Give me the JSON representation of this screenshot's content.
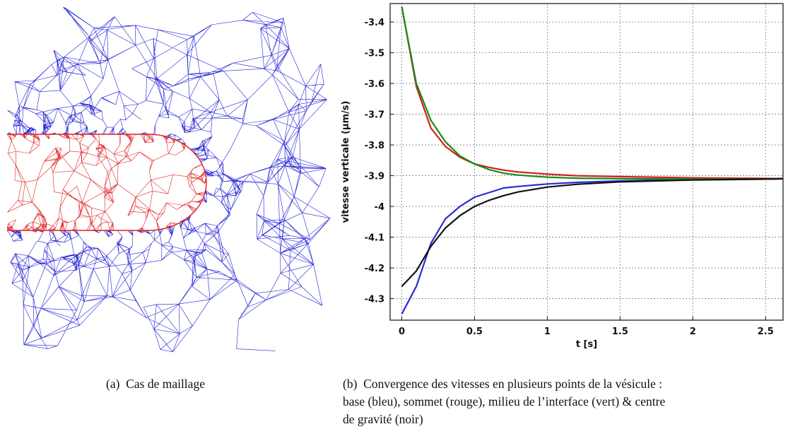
{
  "figure": {
    "subfigure_a": {
      "label": "(a)",
      "caption": "Cas de maillage",
      "mesh_colors": {
        "fluid": "#1f1fd6",
        "vesicle": "#e02020"
      }
    },
    "subfigure_b": {
      "label": "(b)",
      "caption_line1": "Convergence des vitesses en plusieurs points de la vésicule :",
      "caption_line2": "base (bleu), sommet (rouge), milieu de l’interface (vert) & centre",
      "caption_line3": "de gravité (noir)"
    }
  },
  "chart_data": {
    "type": "line",
    "xlabel": "t [s]",
    "ylabel": "vitesse verticale (µm/s)",
    "xlim": [
      -0.08,
      2.62
    ],
    "ylim": [
      -4.37,
      -3.34
    ],
    "x_ticks": [
      0,
      0.5,
      1,
      1.5,
      2,
      2.5
    ],
    "x_tick_labels": [
      "0",
      "0.5",
      "1",
      "1.5",
      "2",
      "2.5"
    ],
    "y_ticks": [
      -3.4,
      -3.5,
      -3.6,
      -3.7,
      -3.8,
      -3.9,
      -4,
      -4.1,
      -4.2,
      -4.3
    ],
    "y_tick_labels": [
      "-3.4",
      "-3.5",
      "-3.6",
      "-3.7",
      "-3.8",
      "-3.9",
      "-4",
      "-4.1",
      "-4.2",
      "-4.3"
    ],
    "grid": true,
    "series": [
      {
        "color": "#2a2ad8",
        "x": [
          0,
          0.1,
          0.2,
          0.3,
          0.4,
          0.5,
          0.6,
          0.7,
          0.8,
          1.0,
          1.2,
          1.5,
          2.0,
          2.5,
          2.62
        ],
        "y": [
          -4.35,
          -4.26,
          -4.12,
          -4.04,
          -4.0,
          -3.97,
          -3.955,
          -3.94,
          -3.935,
          -3.927,
          -3.922,
          -3.917,
          -3.912,
          -3.911,
          -3.91
        ]
      },
      {
        "color": "#d02020",
        "x": [
          0,
          0.1,
          0.2,
          0.3,
          0.4,
          0.5,
          0.6,
          0.7,
          0.8,
          1.0,
          1.2,
          1.5,
          2.0,
          2.5,
          2.62
        ],
        "y": [
          -3.35,
          -3.61,
          -3.745,
          -3.805,
          -3.84,
          -3.862,
          -3.873,
          -3.882,
          -3.888,
          -3.895,
          -3.9,
          -3.903,
          -3.907,
          -3.909,
          -3.91
        ]
      },
      {
        "color": "#1a8a1a",
        "x": [
          0,
          0.1,
          0.2,
          0.3,
          0.4,
          0.5,
          0.6,
          0.7,
          0.8,
          1.0,
          1.2,
          1.5,
          2.0,
          2.5,
          2.62
        ],
        "y": [
          -3.35,
          -3.6,
          -3.72,
          -3.79,
          -3.836,
          -3.862,
          -3.88,
          -3.892,
          -3.898,
          -3.905,
          -3.908,
          -3.91,
          -3.911,
          -3.911,
          -3.91
        ]
      },
      {
        "color": "#111111",
        "x": [
          0,
          0.1,
          0.2,
          0.3,
          0.4,
          0.5,
          0.6,
          0.7,
          0.8,
          1.0,
          1.2,
          1.5,
          2.0,
          2.5,
          2.62
        ],
        "y": [
          -4.26,
          -4.21,
          -4.13,
          -4.07,
          -4.03,
          -4.0,
          -3.98,
          -3.965,
          -3.953,
          -3.937,
          -3.928,
          -3.92,
          -3.914,
          -3.911,
          -3.91
        ]
      }
    ]
  }
}
